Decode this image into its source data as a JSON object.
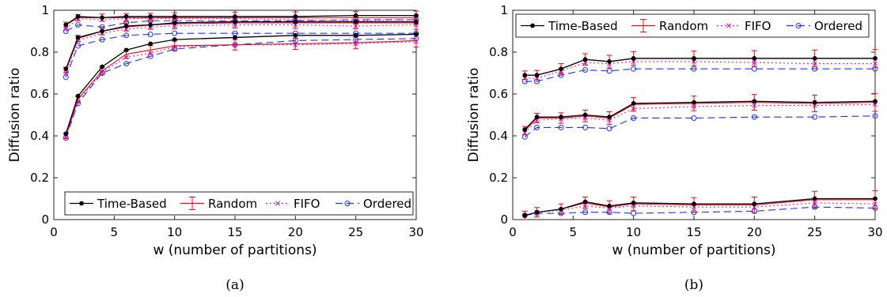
{
  "colors": {
    "time_based": "#000000",
    "random": "#e0101c",
    "fifo": "#cc22cc",
    "ordered": "#2233ee"
  },
  "chart_data": [
    {
      "type": "line",
      "caption": "(a)",
      "xlabel": "w (number of partitions)",
      "ylabel": "Diffusion ratio",
      "xlim": [
        0,
        30
      ],
      "ylim": [
        0,
        1
      ],
      "xticks": [
        0,
        5,
        10,
        15,
        20,
        25,
        30
      ],
      "yticks": [
        0,
        0.2,
        0.4,
        0.6,
        0.8,
        1
      ],
      "ytick_labels": [
        "0",
        "0.2",
        "0.4",
        "0.6",
        "0.8",
        "1"
      ],
      "grid": false,
      "legend": {
        "placement": "bottom-right",
        "layout": "horizontal"
      },
      "x": [
        1,
        2,
        4,
        6,
        8,
        10,
        15,
        20,
        25,
        30
      ],
      "series": [
        {
          "name": "Time-Based",
          "key": "time_based",
          "marker": "dot",
          "dash": "solid",
          "error_bars": false,
          "groups": [
            [
              0.93,
              0.97,
              0.965,
              0.97,
              0.97,
              0.97,
              0.97,
              0.97,
              0.975,
              0.975
            ],
            [
              0.72,
              0.87,
              0.9,
              0.925,
              0.93,
              0.94,
              0.945,
              0.945,
              0.945,
              0.945
            ],
            [
              0.41,
              0.59,
              0.73,
              0.81,
              0.84,
              0.86,
              0.87,
              0.88,
              0.88,
              0.885
            ]
          ]
        },
        {
          "name": "Random",
          "key": "random",
          "marker": "none",
          "dash": "solid",
          "error_bars": true,
          "groups": [
            [
              0.93,
              0.965,
              0.965,
              0.965,
              0.965,
              0.965,
              0.965,
              0.965,
              0.965,
              0.965
            ],
            [
              0.715,
              0.865,
              0.9,
              0.92,
              0.93,
              0.935,
              0.94,
              0.94,
              0.94,
              0.94
            ],
            [
              0.4,
              0.575,
              0.71,
              0.79,
              0.81,
              0.83,
              0.835,
              0.84,
              0.845,
              0.855
            ]
          ]
        },
        {
          "name": "FIFO",
          "key": "fifo",
          "marker": "x",
          "dash": "dotted",
          "error_bars": false,
          "groups": [
            [
              0.91,
              0.96,
              0.955,
              0.96,
              0.96,
              0.96,
              0.96,
              0.955,
              0.95,
              0.955
            ],
            [
              0.7,
              0.855,
              0.89,
              0.91,
              0.92,
              0.925,
              0.93,
              0.93,
              0.925,
              0.93
            ],
            [
              0.395,
              0.565,
              0.705,
              0.775,
              0.795,
              0.825,
              0.835,
              0.835,
              0.84,
              0.85
            ]
          ]
        },
        {
          "name": "Ordered",
          "key": "ordered",
          "marker": "circle",
          "dash": "dashed",
          "error_bars": false,
          "groups": [
            [
              0.9,
              0.93,
              0.92,
              0.94,
              0.95,
              0.95,
              0.95,
              0.95,
              0.955,
              0.955
            ],
            [
              0.68,
              0.83,
              0.86,
              0.88,
              0.885,
              0.89,
              0.89,
              0.89,
              0.89,
              0.89
            ],
            [
              0.39,
              0.555,
              0.7,
              0.745,
              0.78,
              0.815,
              0.835,
              0.855,
              0.86,
              0.865
            ]
          ]
        }
      ]
    },
    {
      "type": "line",
      "caption": "(b)",
      "xlabel": "w (number of partitions)",
      "ylabel": "Diffusion ratio",
      "xlim": [
        0,
        30
      ],
      "ylim": [
        0,
        1
      ],
      "xticks": [
        0,
        5,
        10,
        15,
        20,
        25,
        30
      ],
      "yticks": [
        0,
        0.2,
        0.4,
        0.6,
        0.8,
        1
      ],
      "ytick_labels": [
        "0",
        "0.2",
        "0.4",
        "0.6",
        "0.8",
        "1"
      ],
      "grid": false,
      "legend": {
        "placement": "top-left",
        "layout": "horizontal"
      },
      "x": [
        1,
        2,
        4,
        6,
        8,
        10,
        15,
        20,
        25,
        30
      ],
      "series": [
        {
          "name": "Time-Based",
          "key": "time_based",
          "marker": "dot",
          "dash": "solid",
          "error_bars": false,
          "groups": [
            [
              0.69,
              0.69,
              0.72,
              0.765,
              0.755,
              0.77,
              0.77,
              0.77,
              0.77,
              0.77
            ],
            [
              0.43,
              0.49,
              0.49,
              0.5,
              0.49,
              0.555,
              0.56,
              0.565,
              0.56,
              0.565
            ],
            [
              0.02,
              0.035,
              0.05,
              0.085,
              0.065,
              0.08,
              0.075,
              0.075,
              0.1,
              0.1
            ]
          ]
        },
        {
          "name": "Random",
          "key": "random",
          "marker": "none",
          "dash": "solid",
          "error_bars": true,
          "groups": [
            [
              0.69,
              0.69,
              0.72,
              0.765,
              0.755,
              0.77,
              0.77,
              0.77,
              0.77,
              0.77
            ],
            [
              0.425,
              0.485,
              0.485,
              0.495,
              0.485,
              0.55,
              0.555,
              0.56,
              0.555,
              0.56
            ],
            [
              0.02,
              0.035,
              0.05,
              0.08,
              0.06,
              0.075,
              0.07,
              0.07,
              0.095,
              0.095
            ]
          ]
        },
        {
          "name": "FIFO",
          "key": "fifo",
          "marker": "x",
          "dash": "dotted",
          "error_bars": false,
          "groups": [
            [
              0.675,
              0.675,
              0.71,
              0.75,
              0.745,
              0.755,
              0.755,
              0.75,
              0.745,
              0.745
            ],
            [
              0.415,
              0.475,
              0.48,
              0.485,
              0.475,
              0.53,
              0.54,
              0.545,
              0.545,
              0.55
            ],
            [
              0.02,
              0.035,
              0.045,
              0.065,
              0.055,
              0.065,
              0.06,
              0.06,
              0.08,
              0.075
            ]
          ]
        },
        {
          "name": "Ordered",
          "key": "ordered",
          "marker": "circle",
          "dash": "dashed",
          "error_bars": false,
          "groups": [
            [
              0.66,
              0.66,
              0.69,
              0.715,
              0.71,
              0.72,
              0.72,
              0.72,
              0.72,
              0.72
            ],
            [
              0.395,
              0.44,
              0.44,
              0.44,
              0.435,
              0.485,
              0.485,
              0.49,
              0.49,
              0.495
            ],
            [
              0.02,
              0.03,
              0.03,
              0.035,
              0.035,
              0.03,
              0.035,
              0.04,
              0.06,
              0.055
            ]
          ]
        }
      ]
    }
  ]
}
